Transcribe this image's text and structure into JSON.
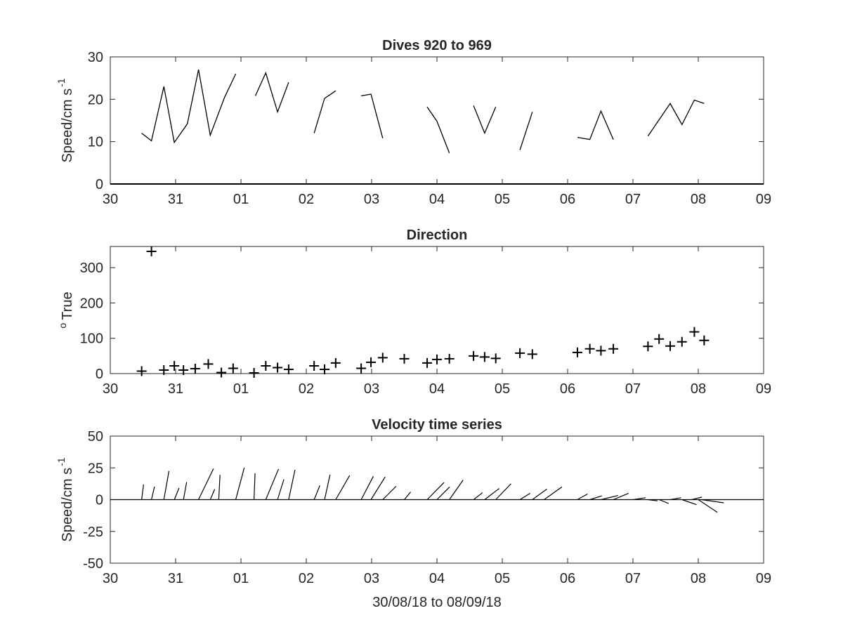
{
  "chart_data": [
    {
      "type": "line",
      "title": "Dives 920 to 969",
      "ylabel": "Speed/cm s",
      "ylabel_superscript": "-1",
      "xlabel": "",
      "xlim": [
        0,
        10
      ],
      "ylim": [
        0,
        30
      ],
      "x_tick_labels": [
        "30",
        "31",
        "01",
        "02",
        "03",
        "04",
        "05",
        "06",
        "07",
        "08",
        "09"
      ],
      "y_ticks": [
        0,
        10,
        20,
        30
      ],
      "grid": false,
      "series": [
        {
          "segments": [
            [
              [
                0.48,
                12.0
              ],
              [
                0.63,
                10.2
              ],
              [
                0.82,
                23.0
              ],
              [
                0.98,
                9.8
              ],
              [
                1.18,
                14.2
              ],
              [
                1.35,
                27.0
              ],
              [
                1.53,
                11.5
              ],
              [
                1.75,
                20.5
              ],
              [
                1.92,
                26.0
              ]
            ],
            [
              [
                2.22,
                20.8
              ],
              [
                2.38,
                26.2
              ],
              [
                2.56,
                17.0
              ],
              [
                2.73,
                24.0
              ]
            ],
            [
              [
                3.12,
                12.0
              ],
              [
                3.28,
                20.2
              ],
              [
                3.45,
                22.0
              ]
            ],
            [
              [
                3.84,
                20.8
              ],
              [
                3.99,
                21.2
              ],
              [
                4.17,
                10.8
              ]
            ],
            [
              [
                4.85,
                18.2
              ],
              [
                5.0,
                14.8
              ],
              [
                5.19,
                7.3
              ]
            ],
            [
              [
                5.56,
                18.5
              ],
              [
                5.73,
                12.0
              ],
              [
                5.9,
                18.2
              ]
            ],
            [
              [
                6.27,
                8.0
              ],
              [
                6.46,
                17.0
              ]
            ],
            [
              [
                7.15,
                11.0
              ],
              [
                7.34,
                10.5
              ],
              [
                7.51,
                17.2
              ],
              [
                7.7,
                10.5
              ]
            ],
            [
              [
                8.23,
                11.3
              ],
              [
                8.57,
                19.0
              ],
              [
                8.75,
                14.0
              ],
              [
                8.94,
                19.8
              ],
              [
                9.09,
                19.0
              ]
            ]
          ]
        }
      ]
    },
    {
      "type": "scatter",
      "title": "Direction",
      "ylabel": "True",
      "ylabel_superscript": "o",
      "xlabel": "",
      "xlim": [
        0,
        10
      ],
      "ylim": [
        0,
        360
      ],
      "x_tick_labels": [
        "30",
        "31",
        "01",
        "02",
        "03",
        "04",
        "05",
        "06",
        "07",
        "08",
        "09"
      ],
      "y_ticks": [
        0,
        100,
        200,
        300
      ],
      "grid": false,
      "marker": "+",
      "points": [
        [
          0.48,
          7
        ],
        [
          0.63,
          346
        ],
        [
          0.82,
          10
        ],
        [
          0.98,
          22
        ],
        [
          1.12,
          10
        ],
        [
          1.3,
          14
        ],
        [
          1.5,
          27
        ],
        [
          1.7,
          3
        ],
        [
          1.88,
          15
        ],
        [
          2.2,
          2
        ],
        [
          2.38,
          22
        ],
        [
          2.56,
          17
        ],
        [
          2.73,
          12
        ],
        [
          3.12,
          22
        ],
        [
          3.28,
          12
        ],
        [
          3.45,
          30
        ],
        [
          3.84,
          15
        ],
        [
          3.99,
          32
        ],
        [
          4.17,
          45
        ],
        [
          4.5,
          42
        ],
        [
          4.85,
          30
        ],
        [
          5.0,
          40
        ],
        [
          5.19,
          42
        ],
        [
          5.56,
          50
        ],
        [
          5.73,
          47
        ],
        [
          5.9,
          43
        ],
        [
          6.27,
          58
        ],
        [
          6.46,
          55
        ],
        [
          7.15,
          60
        ],
        [
          7.34,
          70
        ],
        [
          7.51,
          65
        ],
        [
          7.7,
          70
        ],
        [
          8.23,
          77
        ],
        [
          8.4,
          98
        ],
        [
          8.57,
          78
        ],
        [
          8.75,
          90
        ],
        [
          8.94,
          118
        ],
        [
          9.09,
          94
        ]
      ]
    },
    {
      "type": "quiver",
      "title": "Velocity time series",
      "ylabel": "Speed/cm s",
      "ylabel_superscript": "-1",
      "xlabel": "30/08/18 to 08/09/18",
      "xlim": [
        0,
        10
      ],
      "ylim": [
        -50,
        50
      ],
      "x_tick_labels": [
        "30",
        "31",
        "01",
        "02",
        "03",
        "04",
        "05",
        "06",
        "07",
        "08",
        "09"
      ],
      "y_ticks": [
        -50,
        -25,
        0,
        25,
        50
      ],
      "grid": false,
      "baseline": 0,
      "sticks": [
        {
          "x": 0.48,
          "u": 1.5,
          "v": 12
        },
        {
          "x": 0.63,
          "u": 2.4,
          "v": 10.2
        },
        {
          "x": 0.82,
          "u": 4,
          "v": 22.5
        },
        {
          "x": 0.98,
          "u": 3.7,
          "v": 9.1
        },
        {
          "x": 1.12,
          "u": 2.5,
          "v": 13.8
        },
        {
          "x": 1.35,
          "u": 11.8,
          "v": 24.4
        },
        {
          "x": 1.53,
          "u": 3.5,
          "v": 8.2
        },
        {
          "x": 1.66,
          "u": 1.0,
          "v": 19.5
        },
        {
          "x": 1.92,
          "u": 6.7,
          "v": 25.1
        },
        {
          "x": 2.2,
          "u": 0.8,
          "v": 20.8
        },
        {
          "x": 2.38,
          "u": 10,
          "v": 24
        },
        {
          "x": 2.56,
          "u": 5,
          "v": 16
        },
        {
          "x": 2.73,
          "u": 5.0,
          "v": 23.5
        },
        {
          "x": 3.12,
          "u": 4.5,
          "v": 11.1
        },
        {
          "x": 3.28,
          "u": 4.3,
          "v": 19.7
        },
        {
          "x": 3.45,
          "u": 11.0,
          "v": 19.0
        },
        {
          "x": 3.84,
          "u": 9.6,
          "v": 18.4
        },
        {
          "x": 3.99,
          "u": 11.2,
          "v": 17.9
        },
        {
          "x": 4.17,
          "u": 10.5,
          "v": 10.5
        },
        {
          "x": 4.5,
          "u": 5.0,
          "v": 6.0
        },
        {
          "x": 4.85,
          "u": 13.3,
          "v": 13.5
        },
        {
          "x": 5.0,
          "u": 10,
          "v": 10
        },
        {
          "x": 5.19,
          "u": 10.8,
          "v": 15.4
        },
        {
          "x": 5.56,
          "u": 7.1,
          "v": 5.5
        },
        {
          "x": 5.73,
          "u": 11.5,
          "v": 8.8
        },
        {
          "x": 5.9,
          "u": 12.0,
          "v": 12.5
        },
        {
          "x": 6.27,
          "u": 8.0,
          "v": 5.0
        },
        {
          "x": 6.46,
          "u": 11.4,
          "v": 8.3
        },
        {
          "x": 6.64,
          "u": 14.0,
          "v": 10.0
        },
        {
          "x": 7.15,
          "u": 8.0,
          "v": 4.5
        },
        {
          "x": 7.34,
          "u": 9.5,
          "v": 3.0
        },
        {
          "x": 7.51,
          "u": 13.5,
          "v": 3.3
        },
        {
          "x": 7.7,
          "u": 12.0,
          "v": 5.0
        },
        {
          "x": 8.0,
          "u": 10.0,
          "v": 1.5
        },
        {
          "x": 8.23,
          "u": 7.5,
          "v": -1.0
        },
        {
          "x": 8.4,
          "u": 7.5,
          "v": -3.0
        },
        {
          "x": 8.57,
          "u": 8.6,
          "v": 1.5
        },
        {
          "x": 8.75,
          "u": 11.5,
          "v": -4.0
        },
        {
          "x": 8.9,
          "u": 8.0,
          "v": 2.0
        },
        {
          "x": 9.0,
          "u": 15.0,
          "v": -10.0
        },
        {
          "x": 9.05,
          "u": 17.5,
          "v": -2.5
        }
      ]
    }
  ]
}
